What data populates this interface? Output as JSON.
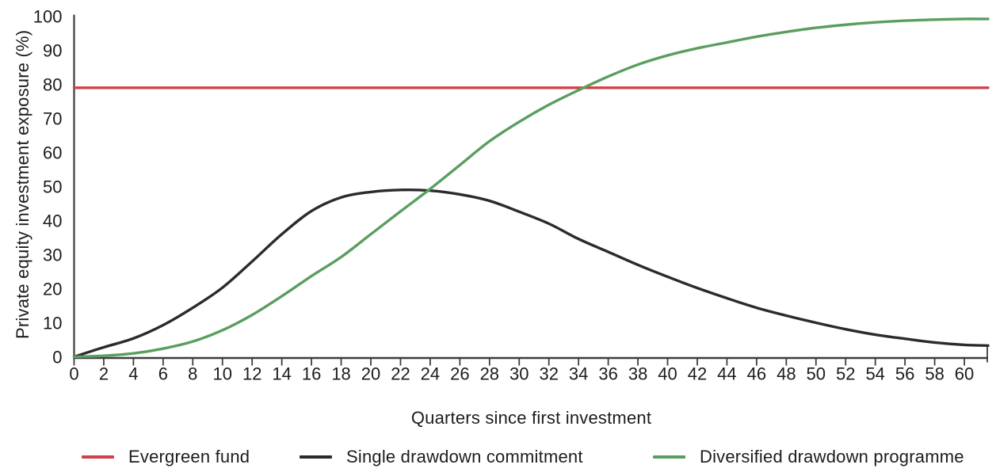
{
  "legend": {
    "items": [
      {
        "label": "Evergreen fund",
        "color": "#cf4147"
      },
      {
        "label": "Single drawdown commitment",
        "color": "#2b2b2b"
      },
      {
        "label": "Diversified drawdown programme",
        "color": "#5a9e5f"
      }
    ]
  },
  "chart_data": {
    "type": "line",
    "title": "",
    "xlabel": "Quarters since first investment",
    "ylabel": "Private equity investment exposure (%)",
    "xlim": [
      0,
      61.6
    ],
    "ylim": [
      0,
      100
    ],
    "x_ticks": [
      0,
      2,
      4,
      6,
      8,
      10,
      12,
      14,
      16,
      18,
      20,
      22,
      24,
      26,
      28,
      30,
      32,
      34,
      36,
      38,
      40,
      42,
      44,
      46,
      48,
      50,
      52,
      54,
      56,
      58,
      60
    ],
    "y_ticks": [
      0,
      10,
      20,
      30,
      40,
      50,
      60,
      70,
      80,
      90,
      100
    ],
    "grid": false,
    "legend_position": "bottom",
    "axis_color": "#3d3d3d",
    "series": [
      {
        "name": "Evergreen fund",
        "color": "#cf4147",
        "x": [
          0,
          61.6
        ],
        "values": [
          79,
          79
        ]
      },
      {
        "name": "Single drawdown commitment",
        "color": "#2b2b2b",
        "x": [
          0,
          2,
          4,
          6,
          8,
          10,
          12,
          14,
          16,
          18,
          20,
          22,
          24,
          26,
          28,
          30,
          32,
          34,
          36,
          38,
          40,
          42,
          44,
          46,
          48,
          50,
          52,
          54,
          56,
          58,
          60,
          61.6
        ],
        "values": [
          0,
          2.8,
          5.4,
          9.3,
          14.4,
          20.3,
          28,
          36,
          42.8,
          46.8,
          48.4,
          49,
          48.8,
          47.7,
          45.8,
          42.6,
          39.1,
          34.6,
          30.8,
          27,
          23.5,
          20.2,
          17.2,
          14.4,
          12.1,
          10,
          8.1,
          6.5,
          5.3,
          4.2,
          3.5,
          3.3
        ]
      },
      {
        "name": "Diversified drawdown programme",
        "color": "#5a9e5f",
        "x": [
          0,
          2,
          4,
          6,
          8,
          10,
          12,
          14,
          16,
          18,
          20,
          22,
          24,
          26,
          28,
          30,
          32,
          34,
          36,
          38,
          40,
          42,
          44,
          46,
          48,
          50,
          52,
          54,
          56,
          58,
          60,
          61.6
        ],
        "values": [
          0,
          0.3,
          1,
          2.4,
          4.5,
          7.8,
          12.3,
          17.8,
          23.7,
          29.3,
          36,
          42.7,
          49.3,
          56.3,
          63.3,
          69,
          74,
          78.3,
          82.3,
          85.8,
          88.5,
          90.6,
          92.3,
          94,
          95.4,
          96.6,
          97.5,
          98.2,
          98.7,
          99,
          99.2,
          99.2
        ]
      }
    ]
  }
}
